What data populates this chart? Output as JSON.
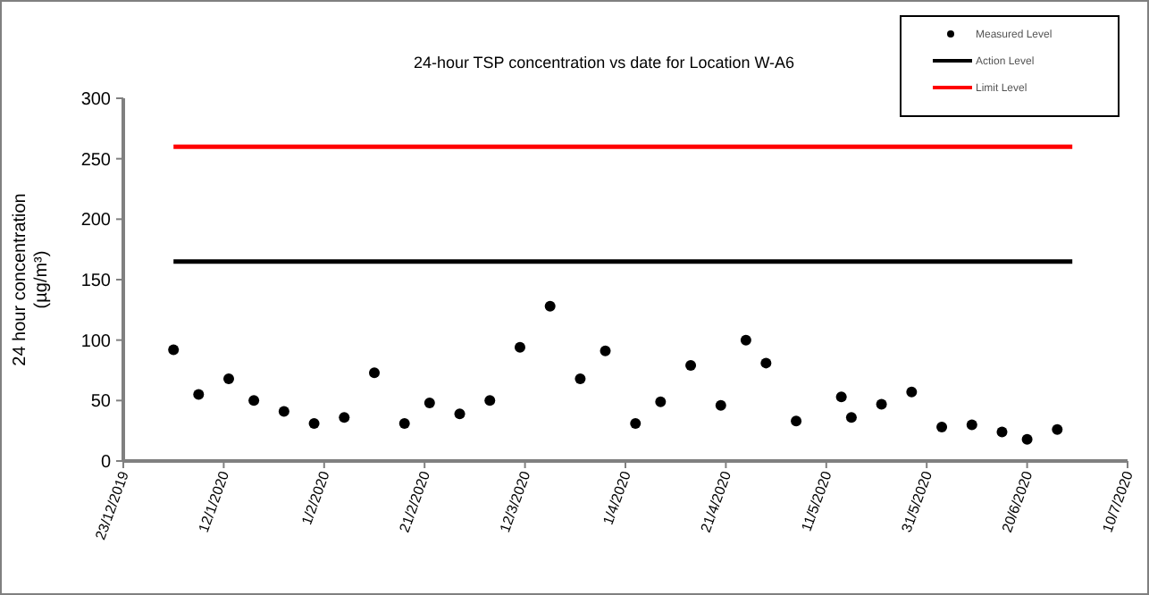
{
  "chart_data": {
    "type": "scatter",
    "title": "24-hour TSP concentration vs date for Location W-A6",
    "ylabel": "24 hour concentration\n(µg/m³)",
    "xlim": [
      "2019-12-23",
      "2020-07-10"
    ],
    "xticks": [
      {
        "value": "2019-12-23",
        "label": "23/12/2019"
      },
      {
        "value": "2020-01-12",
        "label": "12/1/2020"
      },
      {
        "value": "2020-02-01",
        "label": "1/2/2020"
      },
      {
        "value": "2020-02-21",
        "label": "21/2/2020"
      },
      {
        "value": "2020-03-12",
        "label": "12/3/2020"
      },
      {
        "value": "2020-04-01",
        "label": "1/4/2020"
      },
      {
        "value": "2020-04-21",
        "label": "21/4/2020"
      },
      {
        "value": "2020-05-11",
        "label": "11/5/2020"
      },
      {
        "value": "2020-05-31",
        "label": "31/5/2020"
      },
      {
        "value": "2020-06-20",
        "label": "20/6/2020"
      },
      {
        "value": "2020-07-10",
        "label": "10/7/2020"
      }
    ],
    "ylim": [
      0,
      300
    ],
    "yticks": [
      0,
      50,
      100,
      150,
      200,
      250,
      300
    ],
    "grid": false,
    "legend": "top right",
    "series": [
      {
        "name": "Measured Level",
        "marker": "circle",
        "color": "#000000",
        "x": [
          "2020-01-02",
          "2020-01-07",
          "2020-01-13",
          "2020-01-18",
          "2020-01-24",
          "2020-01-30",
          "2020-02-05",
          "2020-02-11",
          "2020-02-17",
          "2020-02-22",
          "2020-02-28",
          "2020-03-05",
          "2020-03-11",
          "2020-03-17",
          "2020-03-23",
          "2020-03-28",
          "2020-04-03",
          "2020-04-08",
          "2020-04-14",
          "2020-04-20",
          "2020-04-25",
          "2020-04-29",
          "2020-05-05",
          "2020-05-14",
          "2020-05-16",
          "2020-05-22",
          "2020-05-28",
          "2020-06-03",
          "2020-06-09",
          "2020-06-15",
          "2020-06-20",
          "2020-06-26"
        ],
        "values": [
          92,
          55,
          68,
          50,
          41,
          31,
          36,
          73,
          31,
          48,
          39,
          50,
          94,
          128,
          68,
          91,
          31,
          49,
          79,
          46,
          100,
          81,
          33,
          53,
          36,
          47,
          57,
          28,
          30,
          24,
          18,
          26
        ]
      },
      {
        "name": "Action Level",
        "type": "line",
        "color": "#000000",
        "x": [
          "2020-01-02",
          "2020-06-29"
        ],
        "values": [
          165,
          165
        ]
      },
      {
        "name": "Limit Level",
        "type": "line",
        "color": "#ff0000",
        "x": [
          "2020-01-02",
          "2020-06-29"
        ],
        "values": [
          260,
          260
        ]
      }
    ]
  }
}
